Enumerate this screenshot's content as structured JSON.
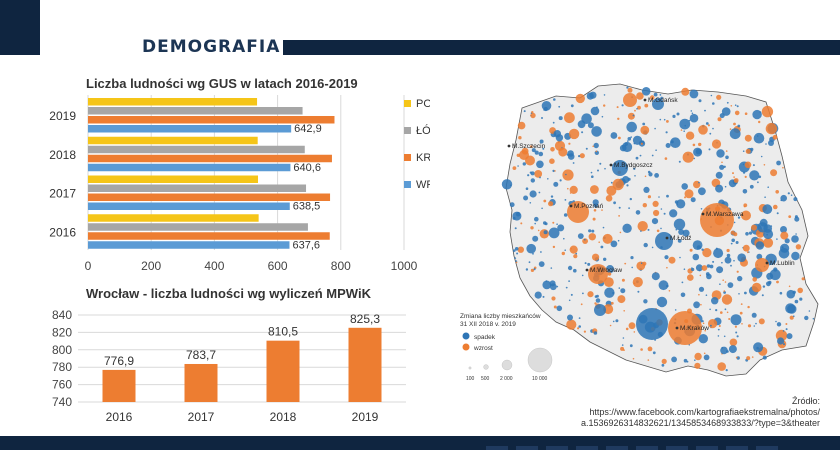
{
  "header": {
    "title": "DEMOGRAFIA"
  },
  "chart_data": [
    {
      "type": "bar",
      "orientation": "horizontal",
      "title": "Liczba ludności wg GUS w latach 2016-2019",
      "categories": [
        "2019",
        "2018",
        "2017",
        "2016"
      ],
      "series": [
        {
          "name": "POZNAŃ",
          "color": "#f5c518",
          "values": [
            535,
            537,
            538,
            540
          ]
        },
        {
          "name": "ŁÓDŹ",
          "color": "#a6a6a6",
          "values": [
            679,
            686,
            690,
            696
          ]
        },
        {
          "name": "KRAKÓW",
          "color": "#ed7d31",
          "values": [
            780,
            772,
            766,
            765
          ]
        },
        {
          "name": "WROCŁAW",
          "color": "#5b9bd5",
          "values": [
            642.9,
            640.6,
            638.5,
            637.6
          ],
          "labels": [
            "642,9",
            "640,6",
            "638,5",
            "637,6"
          ]
        }
      ],
      "xlim": [
        0,
        1000
      ],
      "xticks": [
        "0",
        "200",
        "400",
        "600",
        "800",
        "1000"
      ],
      "legend": "right"
    },
    {
      "type": "bar",
      "title": "Wrocław - liczba ludności wg wyliczeń MPWiK",
      "categories": [
        "2016",
        "2017",
        "2018",
        "2019"
      ],
      "values": [
        776.9,
        783.7,
        810.5,
        825.3
      ],
      "labels": [
        "776,9",
        "783,7",
        "810,5",
        "825,3"
      ],
      "ylim": [
        740,
        840
      ],
      "yticks": [
        "740",
        "760",
        "780",
        "800",
        "820",
        "840"
      ],
      "color": "#ed7d31",
      "grid": true
    }
  ],
  "map": {
    "cities": [
      "M.Gdańsk",
      "M.Szczecin",
      "M.Bydgoszcz",
      "M.Poznań",
      "M.Warszawa",
      "M.Łódź",
      "M.Wrocław",
      "M.Lublin",
      "M.Kraków"
    ],
    "legend": {
      "title_line1": "Zmiana liczby mieszkańców",
      "title_line2": "31 XII 2018 v. 2019",
      "decrease": "spadek",
      "increase": "wzrost",
      "sizes": [
        "100",
        "500",
        "2 000",
        "10 000"
      ],
      "decrease_color": "#2e75b6",
      "increase_color": "#ed7d31"
    }
  },
  "source": {
    "line1": "Źródło:",
    "line2": "https://www.facebook.com/kartografiaekstremalna/photos/",
    "line3": "a.1536926314832621/1345853468933833/?type=3&theater"
  }
}
